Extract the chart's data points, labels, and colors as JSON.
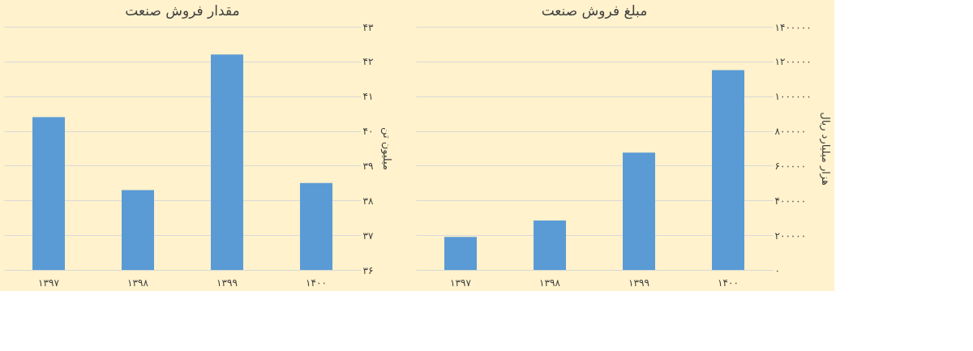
{
  "chart_data": [
    {
      "type": "bar",
      "title": "مقدار فروش صنعت",
      "ylabel": "میلیون تن",
      "categories": [
        "۱۳۹۷",
        "۱۳۹۸",
        "۱۳۹۹",
        "۱۴۰۰"
      ],
      "series": [
        {
          "color": "#5b9bd5",
          "values": [
            40.4,
            38.3,
            42.2,
            38.5
          ]
        }
      ],
      "ylim": [
        36,
        43
      ],
      "yticks": [
        {
          "value": 36,
          "label": "۳۶"
        },
        {
          "value": 37,
          "label": "۳۷"
        },
        {
          "value": 38,
          "label": "۳۸"
        },
        {
          "value": 39,
          "label": "۳۹"
        },
        {
          "value": 40,
          "label": "۴۰"
        },
        {
          "value": 41,
          "label": "۴۱"
        },
        {
          "value": 42,
          "label": "۴۲"
        },
        {
          "value": 43,
          "label": "۴۳"
        }
      ],
      "grid": "y"
    },
    {
      "type": "bar",
      "title": "مبلغ فروش صنعت",
      "ylabel": "هزار میلیارد ریال",
      "categories": [
        "۱۳۹۷",
        "۱۳۹۸",
        "۱۳۹۹",
        "۱۴۰۰"
      ],
      "series": [
        {
          "color": "#5b9bd5",
          "values": [
            190000,
            285000,
            675000,
            1150000
          ]
        }
      ],
      "ylim": [
        0,
        1400000
      ],
      "yticks": [
        {
          "value": 0,
          "label": "۰"
        },
        {
          "value": 200000,
          "label": "۲۰۰۰۰۰"
        },
        {
          "value": 400000,
          "label": "۴۰۰۰۰۰"
        },
        {
          "value": 600000,
          "label": "۶۰۰۰۰۰"
        },
        {
          "value": 800000,
          "label": "۸۰۰۰۰۰"
        },
        {
          "value": 1000000,
          "label": "۱۰۰۰۰۰۰"
        },
        {
          "value": 1200000,
          "label": "۱۲۰۰۰۰۰"
        },
        {
          "value": 1400000,
          "label": "۱۴۰۰۰۰۰"
        }
      ],
      "grid": "y"
    }
  ]
}
